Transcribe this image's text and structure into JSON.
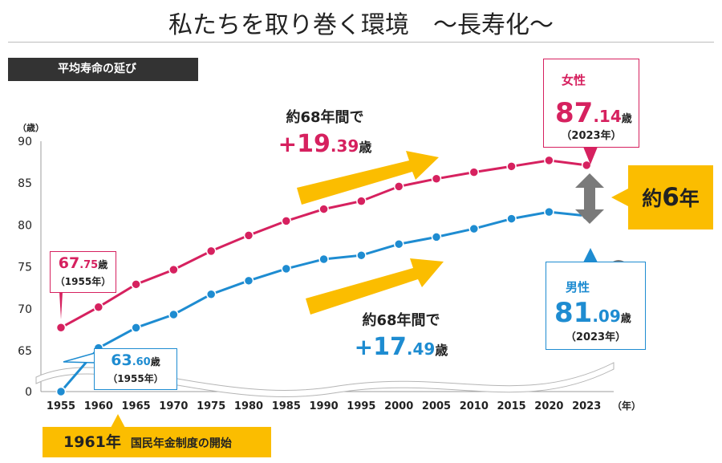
{
  "header": {
    "title": "私たちを取り巻く環境　～長寿化～",
    "section": "平均寿命の延び"
  },
  "chart_data": {
    "type": "line",
    "x": [
      1955,
      1960,
      1965,
      1970,
      1975,
      1980,
      1985,
      1990,
      1995,
      2000,
      2005,
      2010,
      2015,
      2020,
      2023
    ],
    "x_tick_labels": [
      "1955",
      "1960",
      "1965",
      "1970",
      "1975",
      "1980",
      "1985",
      "1990",
      "1995",
      "2000",
      "2005",
      "2010",
      "2015",
      "2020",
      "2023"
    ],
    "x_unit": "（年）",
    "y_unit": "（歳）",
    "y_tick_labels": [
      "90",
      "85",
      "80",
      "75",
      "70",
      "65",
      "0"
    ],
    "ylim": [
      0,
      90
    ],
    "y_axis_break": [
      0,
      65
    ],
    "series": [
      {
        "key": "female",
        "color": "#d6215f",
        "values": [
          67.75,
          70.2,
          72.92,
          74.66,
          76.89,
          78.76,
          80.48,
          81.9,
          82.85,
          84.6,
          85.52,
          86.3,
          87.0,
          87.71,
          87.14
        ]
      },
      {
        "key": "male",
        "color": "#1e8cd1",
        "values": [
          63.6,
          65.32,
          67.74,
          69.31,
          71.73,
          73.35,
          74.78,
          75.92,
          76.38,
          77.72,
          78.56,
          79.55,
          80.75,
          81.56,
          81.09
        ]
      }
    ]
  },
  "callouts": {
    "female_start": {
      "integer": "67",
      "decimal": ".75",
      "unit": "歳",
      "year": "（1955年）"
    },
    "male_start": {
      "integer": "63",
      "decimal": ".60",
      "unit": "歳",
      "year": "（1955年）"
    },
    "female_end": {
      "label": "女性",
      "integer": "87",
      "decimal": ".14",
      "unit": "歳",
      "year": "（2023年）"
    },
    "male_end": {
      "label": "男性",
      "integer": "81",
      "decimal": ".09",
      "unit": "歳",
      "year": "（2023年）"
    }
  },
  "gains": {
    "female": {
      "period": "約68年間で",
      "plus": "+",
      "integer": "19",
      "decimal": ".39",
      "unit": "歳"
    },
    "male": {
      "period": "約68年間で",
      "plus": "+",
      "integer": "17",
      "decimal": ".49",
      "unit": "歳"
    }
  },
  "gap_badge": {
    "prefix": "約",
    "number": "6",
    "suffix": "年"
  },
  "milestone": {
    "year": "1961年",
    "text": "国民年金制度の開始"
  },
  "colors": {
    "female": "#d6215f",
    "male": "#1e8cd1",
    "accent": "#fbbd00",
    "arrow_gray": "#777777",
    "header_bg": "#333333"
  },
  "icons": {
    "female": "elderly-woman-icon",
    "male": "elderly-man-icon",
    "gap": "double-arrow-icon",
    "trend": "up-arrow-icon"
  }
}
